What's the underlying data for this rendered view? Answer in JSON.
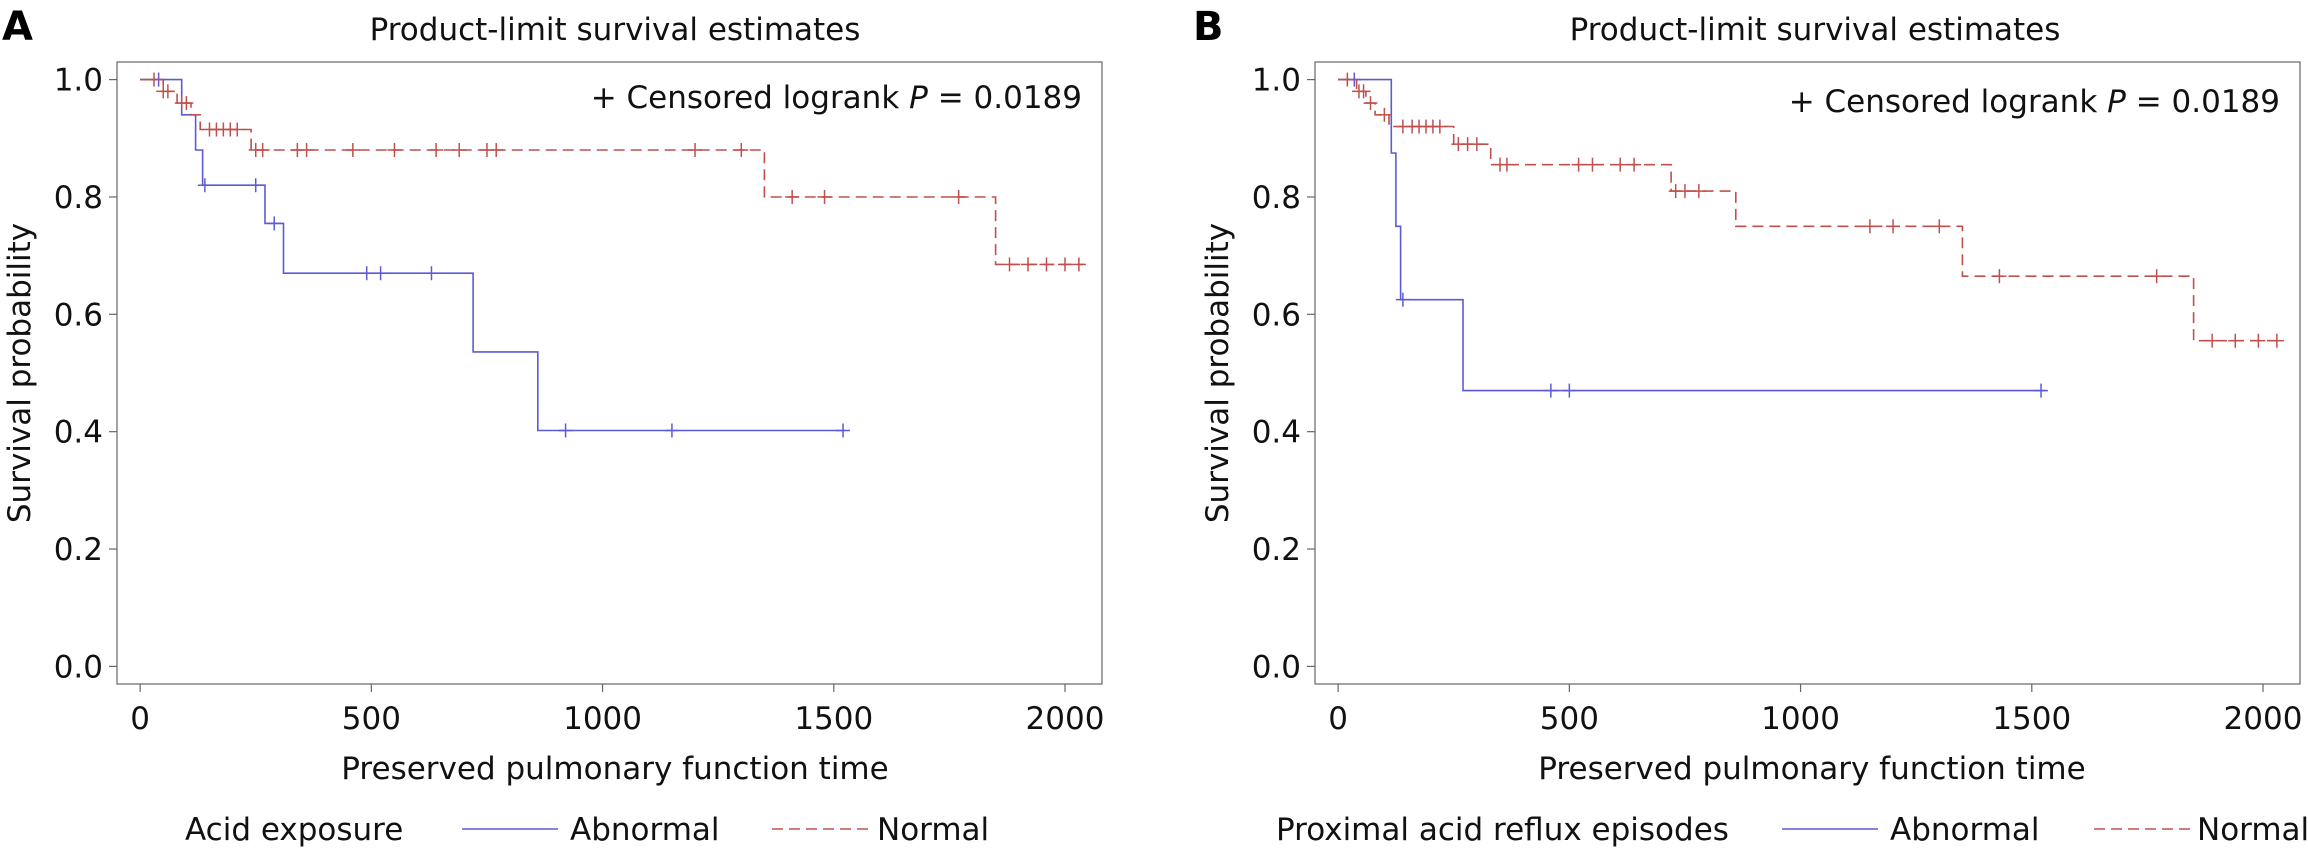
{
  "panels": [
    {
      "letter": "A",
      "title": "Product-limit survival estimates",
      "annotation_prefix": "+ Censored logrank ",
      "annotation_p": "P",
      "annotation_suffix": " = 0.0189",
      "xlabel": "Preserved pulmonary function time",
      "ylabel": "Survival probability",
      "legend_title": "Acid exposure",
      "legend_abnormal": "Abnormal",
      "legend_normal": "Normal"
    },
    {
      "letter": "B",
      "title": "Product-limit survival estimates",
      "annotation_prefix": "+ Censored logrank ",
      "annotation_p": "P",
      "annotation_suffix": " = 0.0189",
      "xlabel": "Preserved pulmonary function time",
      "ylabel": "Survival probability",
      "legend_title": "Proximal acid reflux episodes",
      "legend_abnormal": "Abnormal",
      "legend_normal": "Normal"
    }
  ],
  "colors": {
    "abnormal": "#5b5bd6",
    "normal": "#c0504d"
  },
  "chart_data": [
    {
      "type": "line",
      "title": "Product-limit survival estimates",
      "xlabel": "Preserved pulmonary function time",
      "ylabel": "Survival probability",
      "xlim": [
        -50,
        2080
      ],
      "ylim": [
        -0.03,
        1.03
      ],
      "xticks": [
        0,
        500,
        1000,
        1500,
        2000
      ],
      "yticks": [
        0.0,
        0.2,
        0.4,
        0.6,
        0.8,
        1.0
      ],
      "ytick_labels": [
        "0.0",
        "0.2",
        "0.4",
        "0.6",
        "0.8",
        "1.0"
      ],
      "legend_title": "Acid exposure",
      "series": [
        {
          "name": "Abnormal",
          "style": "solid",
          "steps": [
            [
              0,
              1.0
            ],
            [
              90,
              0.94
            ],
            [
              120,
              0.88
            ],
            [
              135,
              0.82
            ],
            [
              270,
              0.755
            ],
            [
              310,
              0.67
            ],
            [
              720,
              0.536
            ],
            [
              860,
              0.402
            ]
          ],
          "end": 1525,
          "censored": [
            [
              40,
              1.0
            ],
            [
              140,
              0.82
            ],
            [
              250,
              0.82
            ],
            [
              290,
              0.755
            ],
            [
              490,
              0.67
            ],
            [
              520,
              0.67
            ],
            [
              630,
              0.67
            ],
            [
              920,
              0.402
            ],
            [
              1150,
              0.402
            ],
            [
              1520,
              0.402
            ]
          ]
        },
        {
          "name": "Normal",
          "style": "dashed",
          "steps": [
            [
              0,
              1.0
            ],
            [
              50,
              0.98
            ],
            [
              80,
              0.96
            ],
            [
              110,
              0.94
            ],
            [
              130,
              0.915
            ],
            [
              240,
              0.88
            ],
            [
              1350,
              0.8
            ],
            [
              1850,
              0.685
            ]
          ],
          "end": 2040,
          "censored": [
            [
              30,
              1.0
            ],
            [
              50,
              0.98
            ],
            [
              60,
              0.98
            ],
            [
              90,
              0.96
            ],
            [
              100,
              0.96
            ],
            [
              150,
              0.915
            ],
            [
              165,
              0.915
            ],
            [
              180,
              0.915
            ],
            [
              195,
              0.915
            ],
            [
              210,
              0.915
            ],
            [
              250,
              0.88
            ],
            [
              265,
              0.88
            ],
            [
              340,
              0.88
            ],
            [
              360,
              0.88
            ],
            [
              460,
              0.88
            ],
            [
              550,
              0.88
            ],
            [
              640,
              0.88
            ],
            [
              690,
              0.88
            ],
            [
              750,
              0.88
            ],
            [
              770,
              0.88
            ],
            [
              1200,
              0.88
            ],
            [
              1300,
              0.88
            ],
            [
              1410,
              0.8
            ],
            [
              1480,
              0.8
            ],
            [
              1770,
              0.8
            ],
            [
              1880,
              0.685
            ],
            [
              1920,
              0.685
            ],
            [
              1960,
              0.685
            ],
            [
              2000,
              0.685
            ],
            [
              2030,
              0.685
            ]
          ]
        }
      ]
    },
    {
      "type": "line",
      "title": "Product-limit survival estimates",
      "xlabel": "Preserved pulmonary function time",
      "ylabel": "Survival probability",
      "xlim": [
        -50,
        2080
      ],
      "ylim": [
        -0.03,
        1.03
      ],
      "xticks": [
        0,
        500,
        1000,
        1500,
        2000
      ],
      "yticks": [
        0.0,
        0.2,
        0.4,
        0.6,
        0.8,
        1.0
      ],
      "ytick_labels": [
        "0.0",
        "0.2",
        "0.4",
        "0.6",
        "0.8",
        "1.0"
      ],
      "legend_title": "Proximal acid reflux episodes",
      "series": [
        {
          "name": "Abnormal",
          "style": "solid",
          "steps": [
            [
              0,
              1.0
            ],
            [
              115,
              0.875
            ],
            [
              125,
              0.75
            ],
            [
              135,
              0.625
            ],
            [
              270,
              0.47
            ]
          ],
          "end": 1530,
          "censored": [
            [
              35,
              1.0
            ],
            [
              140,
              0.625
            ],
            [
              460,
              0.47
            ],
            [
              500,
              0.47
            ],
            [
              1520,
              0.47
            ]
          ]
        },
        {
          "name": "Normal",
          "style": "dashed",
          "steps": [
            [
              0,
              1.0
            ],
            [
              40,
              0.98
            ],
            [
              60,
              0.96
            ],
            [
              80,
              0.94
            ],
            [
              110,
              0.92
            ],
            [
              250,
              0.89
            ],
            [
              330,
              0.855
            ],
            [
              720,
              0.81
            ],
            [
              860,
              0.75
            ],
            [
              1350,
              0.665
            ],
            [
              1850,
              0.555
            ]
          ],
          "end": 2040,
          "censored": [
            [
              20,
              1.0
            ],
            [
              45,
              0.98
            ],
            [
              55,
              0.98
            ],
            [
              70,
              0.96
            ],
            [
              100,
              0.94
            ],
            [
              140,
              0.92
            ],
            [
              160,
              0.92
            ],
            [
              175,
              0.92
            ],
            [
              190,
              0.92
            ],
            [
              205,
              0.92
            ],
            [
              220,
              0.92
            ],
            [
              260,
              0.89
            ],
            [
              280,
              0.89
            ],
            [
              300,
              0.89
            ],
            [
              350,
              0.855
            ],
            [
              365,
              0.855
            ],
            [
              520,
              0.855
            ],
            [
              550,
              0.855
            ],
            [
              610,
              0.855
            ],
            [
              640,
              0.855
            ],
            [
              730,
              0.81
            ],
            [
              750,
              0.81
            ],
            [
              780,
              0.81
            ],
            [
              1150,
              0.75
            ],
            [
              1200,
              0.75
            ],
            [
              1300,
              0.75
            ],
            [
              1430,
              0.665
            ],
            [
              1770,
              0.665
            ],
            [
              1890,
              0.555
            ],
            [
              1940,
              0.555
            ],
            [
              1990,
              0.555
            ],
            [
              2030,
              0.555
            ]
          ]
        }
      ]
    }
  ]
}
